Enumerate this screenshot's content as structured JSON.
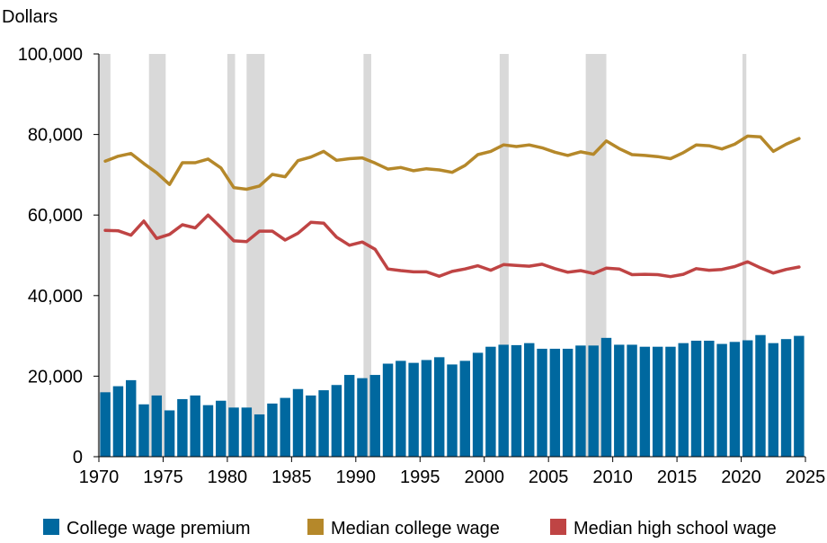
{
  "chart_data": {
    "type": "bar",
    "ylabel": "Dollars",
    "xlim": [
      1970,
      2025
    ],
    "ylim": [
      0,
      100000
    ],
    "y_ticks": [
      "0",
      "20,000",
      "40,000",
      "60,000",
      "80,000",
      "100,000"
    ],
    "x_ticks": [
      "1970",
      "1975",
      "1980",
      "1985",
      "1990",
      "1995",
      "2000",
      "2005",
      "2010",
      "2015",
      "2020",
      "2025"
    ],
    "grid": false,
    "legend_position": "bottom",
    "recession_shading": [
      [
        1969.9,
        1970.9
      ],
      [
        1973.9,
        1975.2
      ],
      [
        1980.0,
        1980.6
      ],
      [
        1981.5,
        1982.9
      ],
      [
        1990.6,
        1991.2
      ],
      [
        2001.2,
        2001.9
      ],
      [
        2007.9,
        2009.5
      ],
      [
        2020.1,
        2020.4
      ]
    ],
    "x": [
      1970,
      1971,
      1972,
      1973,
      1974,
      1975,
      1976,
      1977,
      1978,
      1979,
      1980,
      1981,
      1982,
      1983,
      1984,
      1985,
      1986,
      1987,
      1988,
      1989,
      1990,
      1991,
      1992,
      1993,
      1994,
      1995,
      1996,
      1997,
      1998,
      1999,
      2000,
      2001,
      2002,
      2003,
      2004,
      2005,
      2006,
      2007,
      2008,
      2009,
      2010,
      2011,
      2012,
      2013,
      2014,
      2015,
      2016,
      2017,
      2018,
      2019,
      2020,
      2021,
      2022,
      2023,
      2024
    ],
    "series": [
      {
        "name": "College wage premium",
        "kind": "bar",
        "color": "#00689f",
        "values": [
          16000,
          17500,
          19000,
          13000,
          15200,
          11500,
          14300,
          15200,
          12800,
          13900,
          12200,
          12200,
          10500,
          13200,
          14600,
          16800,
          15200,
          16500,
          17800,
          20300,
          19500,
          20300,
          23100,
          23800,
          23300,
          24000,
          24700,
          22900,
          23800,
          25800,
          27300,
          27800,
          27700,
          28200,
          26800,
          26800,
          26800,
          27600,
          27600,
          29500,
          27800,
          27800,
          27300,
          27300,
          27300,
          28200,
          28800,
          28800,
          28000,
          28500,
          28900,
          30200,
          28200,
          29200,
          30000
        ]
      },
      {
        "name": "Median college wage",
        "kind": "line",
        "color": "#b5882a",
        "values": [
          73400,
          74600,
          75300,
          72800,
          70500,
          67600,
          73000,
          73000,
          73900,
          71700,
          66800,
          66400,
          67200,
          70100,
          69500,
          73500,
          74400,
          75800,
          73600,
          74000,
          74200,
          72900,
          71400,
          71800,
          71000,
          71500,
          71200,
          70600,
          72300,
          75000,
          75800,
          77400,
          77000,
          77400,
          76700,
          75600,
          74800,
          75700,
          75100,
          78400,
          76500,
          75000,
          74800,
          74500,
          74000,
          75500,
          77400,
          77200,
          76400,
          77600,
          79600,
          79400,
          75800,
          77600,
          79000
        ]
      },
      {
        "name": "Median high school wage",
        "kind": "line",
        "color": "#bf4444",
        "values": [
          56200,
          56100,
          55000,
          58500,
          54200,
          55200,
          57600,
          56800,
          60000,
          56900,
          53600,
          53400,
          56000,
          56000,
          53800,
          55500,
          58200,
          58000,
          54500,
          52500,
          53300,
          51500,
          46600,
          46200,
          45900,
          45900,
          44800,
          46000,
          46600,
          47400,
          46300,
          47700,
          47500,
          47300,
          47800,
          46700,
          45800,
          46200,
          45500,
          46800,
          46600,
          45200,
          45300,
          45200,
          44700,
          45300,
          46700,
          46300,
          46500,
          47200,
          48400,
          46900,
          45600,
          46500,
          47100
        ]
      }
    ]
  }
}
